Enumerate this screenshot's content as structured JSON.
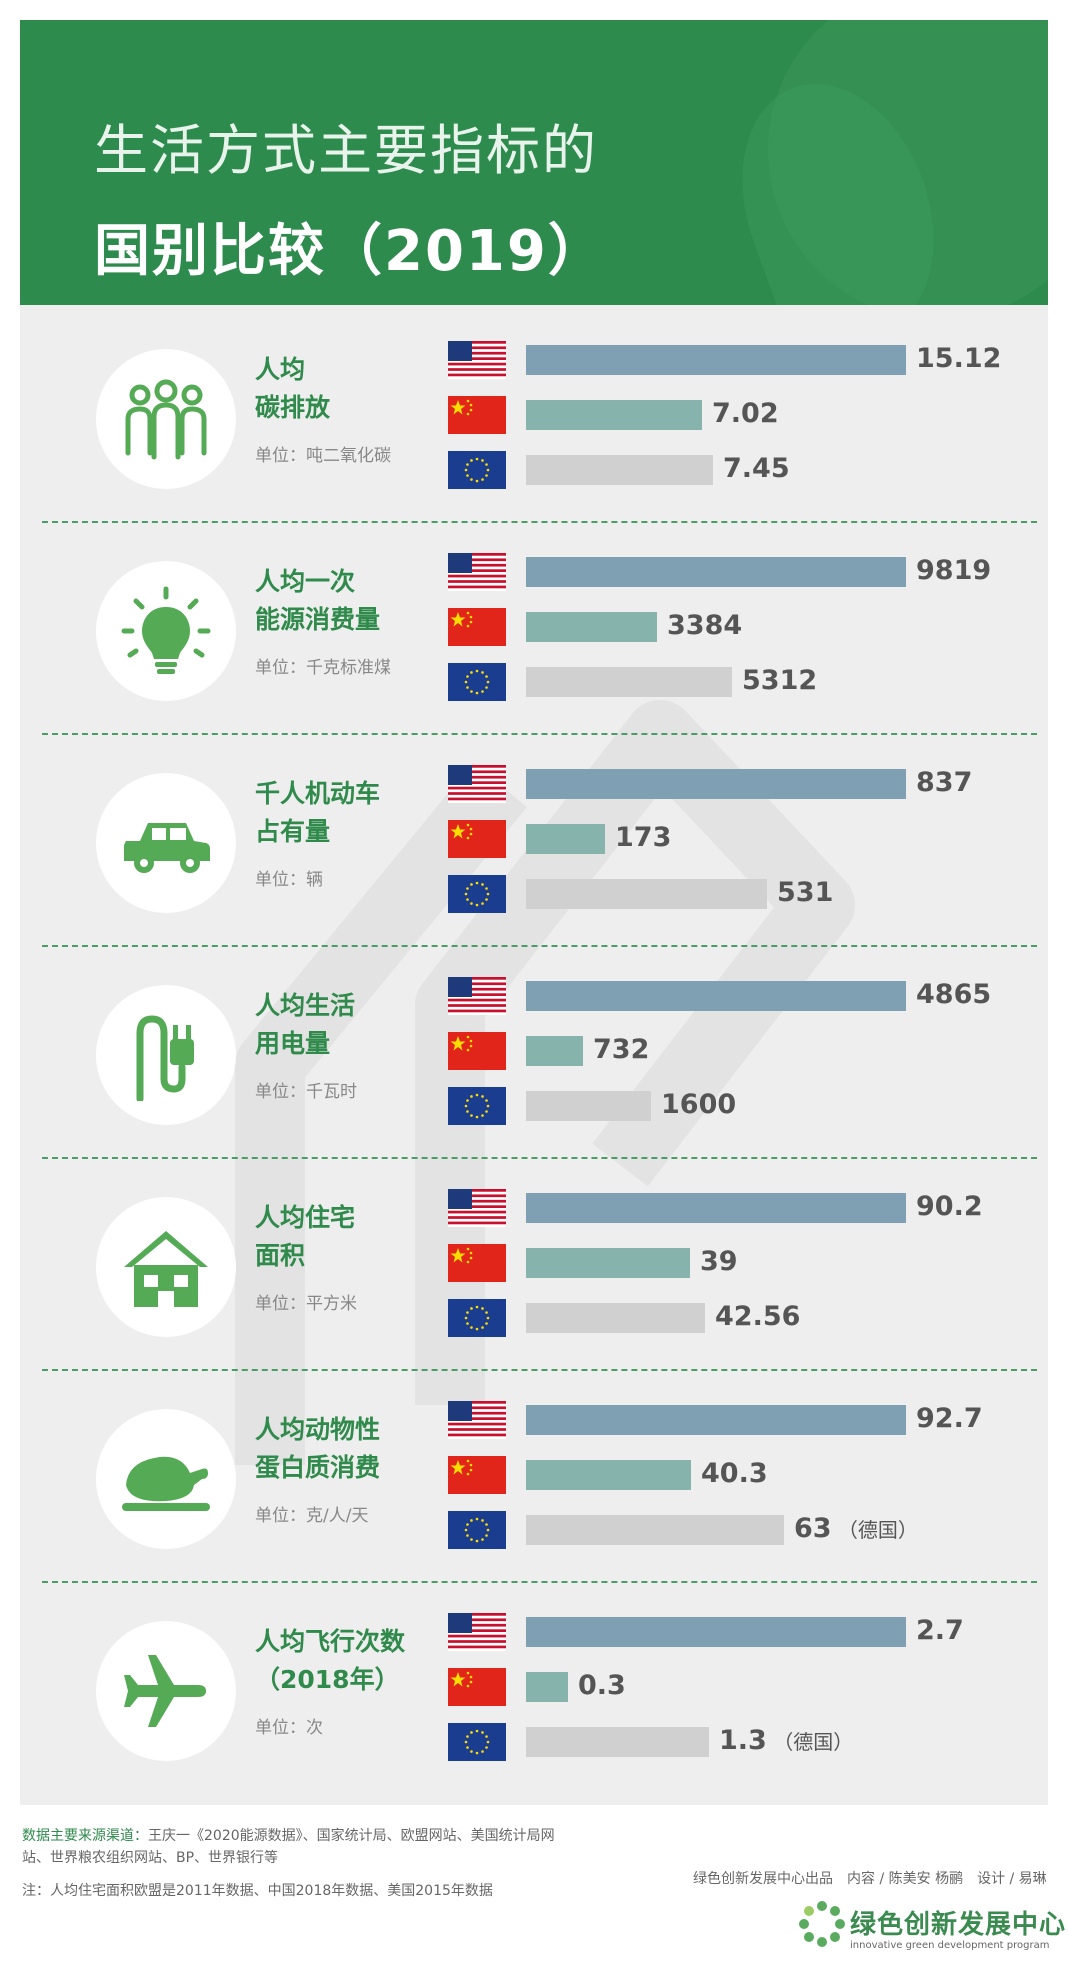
{
  "title": {
    "line1": "生活方式主要指标的",
    "line2": "国别比较（2019）"
  },
  "colors": {
    "header_green": "#2e8b4e",
    "us_bar": "#7f9fb3",
    "cn_bar": "#86b3ac",
    "eu_bar": "#d0d0d0",
    "title_green": "#2f8a4b"
  },
  "legend_icons": [
    "us-flag",
    "china-flag",
    "eu-flag"
  ],
  "chart_data": [
    {
      "type": "bar",
      "title": "人均\n碳排放",
      "unit": "单位：吨二氧化碳",
      "icon": "people-icon",
      "categories": [
        "US",
        "China",
        "EU"
      ],
      "values": [
        15.12,
        7.02,
        7.45
      ],
      "labels": [
        "15.12",
        "7.02",
        "7.45"
      ],
      "notes": [
        "",
        "",
        ""
      ]
    },
    {
      "type": "bar",
      "title": "人均一次\n能源消费量",
      "unit": "单位：千克标准煤",
      "icon": "lightbulb-icon",
      "categories": [
        "US",
        "China",
        "EU"
      ],
      "values": [
        9819,
        3384,
        5312
      ],
      "labels": [
        "9819",
        "3384",
        "5312"
      ],
      "notes": [
        "",
        "",
        ""
      ]
    },
    {
      "type": "bar",
      "title": "千人机动车\n占有量",
      "unit": "单位：辆",
      "icon": "car-icon",
      "categories": [
        "US",
        "China",
        "EU"
      ],
      "values": [
        837,
        173,
        531
      ],
      "labels": [
        "837",
        "173",
        "531"
      ],
      "notes": [
        "",
        "",
        ""
      ]
    },
    {
      "type": "bar",
      "title": "人均生活\n用电量",
      "unit": "单位：千瓦时",
      "icon": "plug-icon",
      "categories": [
        "US",
        "China",
        "EU"
      ],
      "values": [
        4865,
        732,
        1600
      ],
      "labels": [
        "4865",
        "732",
        "1600"
      ],
      "notes": [
        "",
        "",
        ""
      ]
    },
    {
      "type": "bar",
      "title": "人均住宅\n面积",
      "unit": "单位：平方米",
      "icon": "house-icon",
      "categories": [
        "US",
        "China",
        "EU"
      ],
      "values": [
        90.2,
        39,
        42.56
      ],
      "labels": [
        "90.2",
        "39",
        "42.56"
      ],
      "notes": [
        "",
        "",
        ""
      ]
    },
    {
      "type": "bar",
      "title": "人均动物性\n蛋白质消费",
      "unit": "单位：克/人/天",
      "icon": "roast-chicken-icon",
      "categories": [
        "US",
        "China",
        "EU"
      ],
      "values": [
        92.7,
        40.3,
        63
      ],
      "labels": [
        "92.7",
        "40.3",
        "63"
      ],
      "notes": [
        "",
        "",
        "（德国）"
      ]
    },
    {
      "type": "bar",
      "title": "人均飞行次数\n（2018年）",
      "unit": "单位：次",
      "icon": "airplane-icon",
      "categories": [
        "US",
        "China",
        "EU"
      ],
      "values": [
        2.7,
        0.3,
        1.3
      ],
      "labels": [
        "2.7",
        "0.3",
        "1.3"
      ],
      "notes": [
        "",
        "",
        "（德国）"
      ]
    }
  ],
  "footer": {
    "source_label": "数据主要来源渠道：",
    "source_text": "王庆一《2020能源数据》、国家统计局、欧盟网站、美国统计局网站、世界粮农组织网站、BP、世界银行等",
    "note": "注：人均住宅面积欧盟是2011年数据、中国2018年数据、美国2015年数据",
    "credit": "绿色创新发展中心出品　内容 / 陈美安 杨鹂　设计 / 易琳",
    "brand_name": "绿色创新发展中心",
    "brand_en": "innovative green development program"
  }
}
